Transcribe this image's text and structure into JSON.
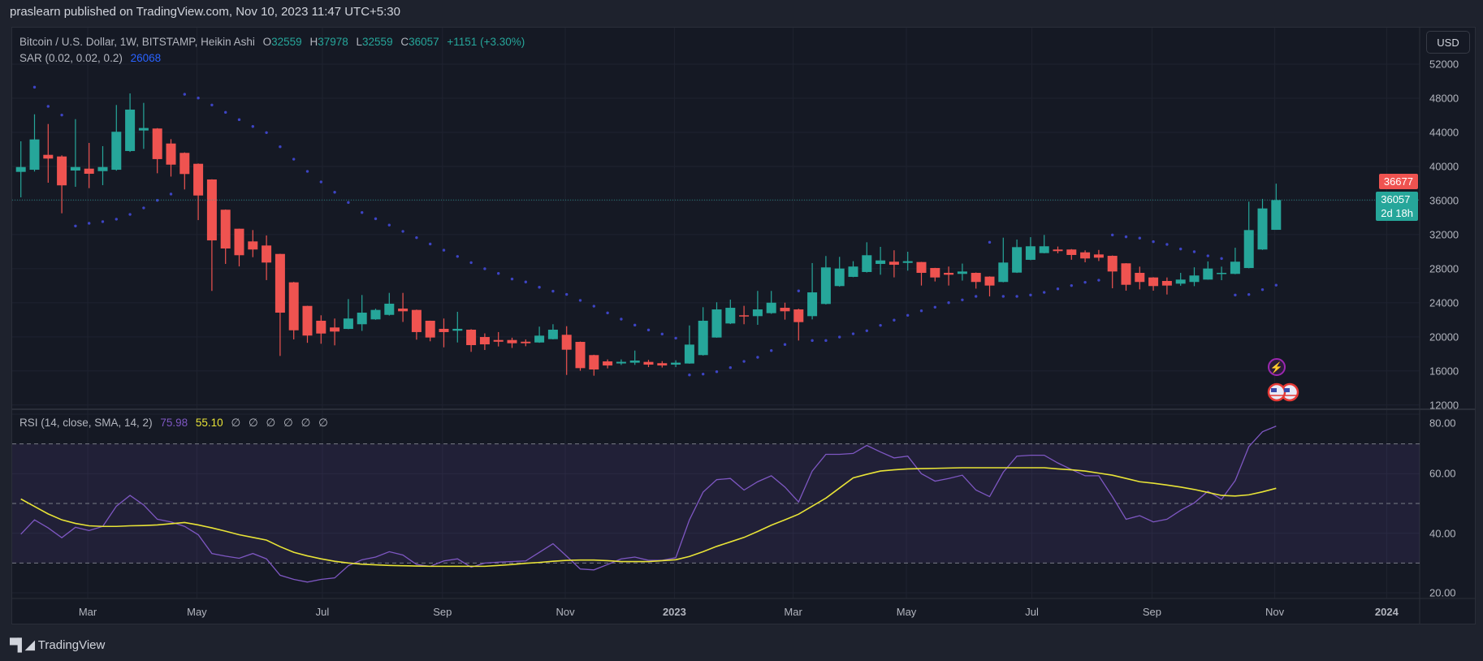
{
  "published": "praslearn published on TradingView.com, Nov 10, 2023 11:47 UTC+5:30",
  "legend": {
    "symbol": "Bitcoin / U.S. Dollar, 1W, BITSTAMP, Heikin Ashi",
    "o_label": "O",
    "o": "32559",
    "h_label": "H",
    "h": "37978",
    "l_label": "L",
    "l": "32559",
    "c_label": "C",
    "c": "36057",
    "change": "+1151 (+3.30%)",
    "sar_label": "SAR (0.02, 0.02, 0.2)",
    "sar_value": "26068"
  },
  "rsi_legend": {
    "label": "RSI (14, close, SMA, 14, 2)",
    "rsi_value": "75.98",
    "sma_value": "55.10",
    "empty_values": [
      "∅",
      "∅",
      "∅",
      "∅",
      "∅",
      "∅"
    ]
  },
  "currency_button": "USD",
  "price_tags": {
    "high_tag": "36677",
    "last_price": "36057",
    "countdown": "2d 18h"
  },
  "footer_brand": "TradingView",
  "colors": {
    "up": "#26a69a",
    "down": "#ef5350",
    "sar": "#3d44c4",
    "rsi": "#7e57c2",
    "rsi_sma": "#e8e337",
    "tag_high": "#ef5350"
  },
  "chart_data": {
    "type": "candlestick",
    "title": "Bitcoin / U.S. Dollar, 1W, BITSTAMP, Heikin Ashi",
    "candles_ohlc": [
      [
        39360,
        42950,
        36370,
        39930
      ],
      [
        39610,
        46120,
        39400,
        43170
      ],
      [
        41360,
        44980,
        38090,
        40920
      ],
      [
        41170,
        41300,
        34500,
        37780
      ],
      [
        39520,
        45550,
        37610,
        39930
      ],
      [
        39740,
        42760,
        37450,
        39140
      ],
      [
        39450,
        42380,
        37800,
        39930
      ],
      [
        39610,
        47210,
        39500,
        44070
      ],
      [
        41810,
        48570,
        41700,
        46670
      ],
      [
        44220,
        47460,
        42060,
        44510
      ],
      [
        44450,
        44500,
        39200,
        40860
      ],
      [
        42690,
        43200,
        38810,
        40210
      ],
      [
        41590,
        41650,
        37300,
        39110
      ],
      [
        40310,
        40350,
        33700,
        36590
      ],
      [
        38470,
        38500,
        25390,
        31320
      ],
      [
        34920,
        34950,
        28560,
        30370
      ],
      [
        32690,
        32700,
        28270,
        29580
      ],
      [
        31200,
        32530,
        29350,
        30250
      ],
      [
        30720,
        31900,
        26660,
        28720
      ],
      [
        29730,
        29750,
        17760,
        22840
      ],
      [
        26400,
        26450,
        19700,
        20770
      ],
      [
        23630,
        23650,
        19300,
        20150
      ],
      [
        21890,
        22530,
        19190,
        20390
      ],
      [
        21100,
        22150,
        19000,
        20620
      ],
      [
        20930,
        24430,
        20900,
        22150
      ],
      [
        21480,
        24910,
        20700,
        22840
      ],
      [
        22050,
        23300,
        22000,
        23160
      ],
      [
        22580,
        25160,
        22500,
        23890
      ],
      [
        23320,
        25160,
        21750,
        23000
      ],
      [
        23160,
        23200,
        19670,
        20560
      ],
      [
        21890,
        21900,
        19480,
        19920
      ],
      [
        20940,
        22150,
        18770,
        20560
      ],
      [
        20720,
        22940,
        19340,
        20940
      ],
      [
        20840,
        20900,
        18240,
        19030
      ],
      [
        19980,
        20410,
        18460,
        19120
      ],
      [
        19630,
        20560,
        18870,
        19430
      ],
      [
        19630,
        19900,
        18700,
        19250
      ],
      [
        19430,
        19700,
        18900,
        19250
      ],
      [
        19340,
        21200,
        19300,
        20140
      ],
      [
        19730,
        21480,
        19700,
        20840
      ],
      [
        20240,
        21250,
        15530,
        18490
      ],
      [
        19410,
        19450,
        16020,
        16330
      ],
      [
        17860,
        17900,
        15440,
        16170
      ],
      [
        17120,
        17350,
        16300,
        16640
      ],
      [
        16880,
        17350,
        16700,
        17070
      ],
      [
        16970,
        18390,
        16710,
        17220
      ],
      [
        17060,
        17300,
        16450,
        16740
      ],
      [
        16910,
        17150,
        16400,
        16640
      ],
      [
        16740,
        17250,
        16450,
        16970
      ],
      [
        16870,
        21340,
        16850,
        19090
      ],
      [
        17860,
        23480,
        17800,
        21890
      ],
      [
        19920,
        24060,
        19900,
        23220
      ],
      [
        21570,
        24370,
        21500,
        23410
      ],
      [
        22530,
        23640,
        21480,
        22430
      ],
      [
        22430,
        25390,
        21410,
        23220
      ],
      [
        22780,
        25390,
        22700,
        24010
      ],
      [
        23410,
        24010,
        22020,
        23000
      ],
      [
        23220,
        23300,
        19570,
        21730
      ],
      [
        22430,
        28660,
        22050,
        25220
      ],
      [
        23860,
        29490,
        23800,
        28150
      ],
      [
        25960,
        29390,
        25900,
        28020
      ],
      [
        27040,
        28880,
        27000,
        28250
      ],
      [
        27610,
        31100,
        27550,
        29580
      ],
      [
        28560,
        30560,
        27290,
        28970
      ],
      [
        28820,
        30160,
        26980,
        28460
      ],
      [
        28680,
        29990,
        27770,
        28880
      ],
      [
        28780,
        28800,
        26020,
        27510
      ],
      [
        28080,
        28100,
        26500,
        26970
      ],
      [
        27510,
        28250,
        26020,
        27290
      ],
      [
        27390,
        28600,
        26600,
        27670
      ],
      [
        27510,
        27550,
        25660,
        26440
      ],
      [
        27070,
        27100,
        24750,
        26020
      ],
      [
        26440,
        31640,
        26400,
        28720
      ],
      [
        27540,
        31420,
        27500,
        30530
      ],
      [
        29040,
        31700,
        29000,
        30630
      ],
      [
        29830,
        31960,
        29800,
        30630
      ],
      [
        30250,
        30600,
        29800,
        30060
      ],
      [
        30250,
        30300,
        29050,
        29610
      ],
      [
        29920,
        30150,
        28750,
        29200
      ],
      [
        29670,
        30200,
        28900,
        29290
      ],
      [
        29510,
        29550,
        25700,
        27670
      ],
      [
        28630,
        28650,
        25420,
        26110
      ],
      [
        27510,
        28240,
        25570,
        26440
      ],
      [
        26970,
        27000,
        25420,
        25960
      ],
      [
        26560,
        26970,
        24970,
        26020
      ],
      [
        26240,
        27510,
        26000,
        26720
      ],
      [
        26440,
        28160,
        25950,
        27200
      ],
      [
        26720,
        28850,
        26700,
        28020
      ],
      [
        27390,
        28240,
        26650,
        27510
      ],
      [
        27390,
        30460,
        27350,
        28820
      ],
      [
        28080,
        35870,
        28050,
        32530
      ],
      [
        30250,
        36190,
        30200,
        35070
      ],
      [
        32559,
        37978,
        32559,
        36057
      ]
    ],
    "sar": [
      null,
      49300,
      47050,
      46030,
      33010,
      33330,
      33520,
      33810,
      34370,
      35130,
      36020,
      36760,
      48470,
      48030,
      47210,
      46350,
      45490,
      44690,
      43970,
      42310,
      40850,
      39420,
      38180,
      36970,
      35770,
      34590,
      33860,
      33120,
      32380,
      31640,
      30900,
      30170,
      29440,
      28710,
      27990,
      27440,
      26790,
      26440,
      25820,
      25360,
      24980,
      24280,
      23600,
      22810,
      22080,
      21380,
      20810,
      20330,
      19850,
      15530,
      15630,
      15910,
      16390,
      17120,
      17600,
      18390,
      19100,
      25390,
      19570,
      19570,
      19980,
      20360,
      20720,
      21350,
      21960,
      22530,
      23060,
      23480,
      24010,
      24340,
      24750,
      31100,
      24750,
      24750,
      24910,
      25220,
      25630,
      26020,
      26400,
      26650,
      31960,
      31740,
      31590,
      31170,
      30850,
      30310,
      29990,
      29510,
      29190,
      24910,
      24970,
      25540,
      26068
    ],
    "rsi": [
      39.7,
      44.5,
      41.8,
      38.5,
      42,
      40.9,
      42.3,
      49.1,
      52.7,
      49.5,
      44.7,
      43.8,
      42.3,
      39.5,
      33.2,
      32.3,
      31.6,
      33.2,
      31.4,
      25.9,
      24.5,
      23.6,
      24.5,
      25,
      29.1,
      31.1,
      32,
      33.8,
      32.7,
      29.5,
      28.9,
      30.7,
      31.4,
      28.6,
      30,
      30.3,
      30.5,
      30.7,
      33.6,
      36.5,
      32.3,
      28,
      27.7,
      29.5,
      31.4,
      32,
      30.9,
      30.9,
      31.8,
      44.5,
      53.8,
      58,
      58.4,
      54.5,
      57.3,
      59.3,
      55.5,
      50.5,
      60.9,
      66.5,
      66.5,
      66.8,
      69.5,
      67.3,
      65.3,
      65.9,
      60,
      57.5,
      58.4,
      59.5,
      54.5,
      52.3,
      60.5,
      65.9,
      66.2,
      66.2,
      63.6,
      61.4,
      59.3,
      59.3,
      52.3,
      44.7,
      45.9,
      43.8,
      44.7,
      47.7,
      50.2,
      54.1,
      51.4,
      57.7,
      69.1,
      74.1,
      75.98
    ],
    "rsi_sma": [
      51.5,
      49,
      46.5,
      44.5,
      43.3,
      42.5,
      42.3,
      42.3,
      42.5,
      42.6,
      42.8,
      43.2,
      43.6,
      42.8,
      41.8,
      40.7,
      39.5,
      38.6,
      37.7,
      35.5,
      33.6,
      32.4,
      31.4,
      30.6,
      30,
      29.6,
      29.4,
      29.2,
      29.1,
      29,
      28.9,
      28.9,
      28.9,
      28.9,
      28.9,
      29.2,
      29.5,
      29.9,
      30.2,
      30.6,
      30.9,
      31,
      31,
      30.8,
      30.5,
      30.5,
      30.5,
      30.8,
      31.1,
      32.2,
      33.8,
      35.6,
      37.1,
      38.6,
      40.6,
      42.7,
      44.5,
      46.4,
      49.1,
      51.8,
      55.2,
      58.6,
      59.8,
      60.9,
      61.3,
      61.6,
      61.7,
      61.8,
      61.9,
      62,
      62,
      62,
      62,
      62,
      62,
      62,
      61.6,
      61.3,
      60.9,
      60.2,
      59.5,
      58.4,
      57.3,
      56.8,
      56.2,
      55.5,
      54.7,
      53.7,
      52.7,
      52.5,
      52.9,
      53.9,
      55.1
    ],
    "rsi_bands": {
      "upper": 70,
      "middle": 50,
      "lower": 30
    },
    "price_axis": {
      "range": [
        12000,
        52000
      ],
      "ticks": [
        "52000",
        "48000",
        "44000",
        "40000",
        "36000",
        "32000",
        "28000",
        "24000",
        "20000",
        "16000",
        "12000"
      ],
      "tick_values": [
        52000,
        48000,
        44000,
        40000,
        36000,
        32000,
        28000,
        24000,
        20000,
        16000,
        12000
      ]
    },
    "rsi_axis": {
      "range": [
        20,
        80
      ],
      "ticks": [
        "80.00",
        "60.00",
        "40.00",
        "20.00"
      ],
      "tick_values": [
        80,
        60,
        40,
        20
      ]
    },
    "time_axis": {
      "ticks": [
        "Mar",
        "May",
        "Jul",
        "Sep",
        "Nov",
        "2023",
        "Mar",
        "May",
        "Jul",
        "Sep",
        "Nov",
        "2024"
      ],
      "tick_week_index": [
        4.9,
        12.9,
        22.1,
        30.9,
        39.9,
        47.9,
        56.6,
        64.9,
        74.1,
        82.9,
        91.9,
        100.1
      ]
    },
    "grid": true
  }
}
